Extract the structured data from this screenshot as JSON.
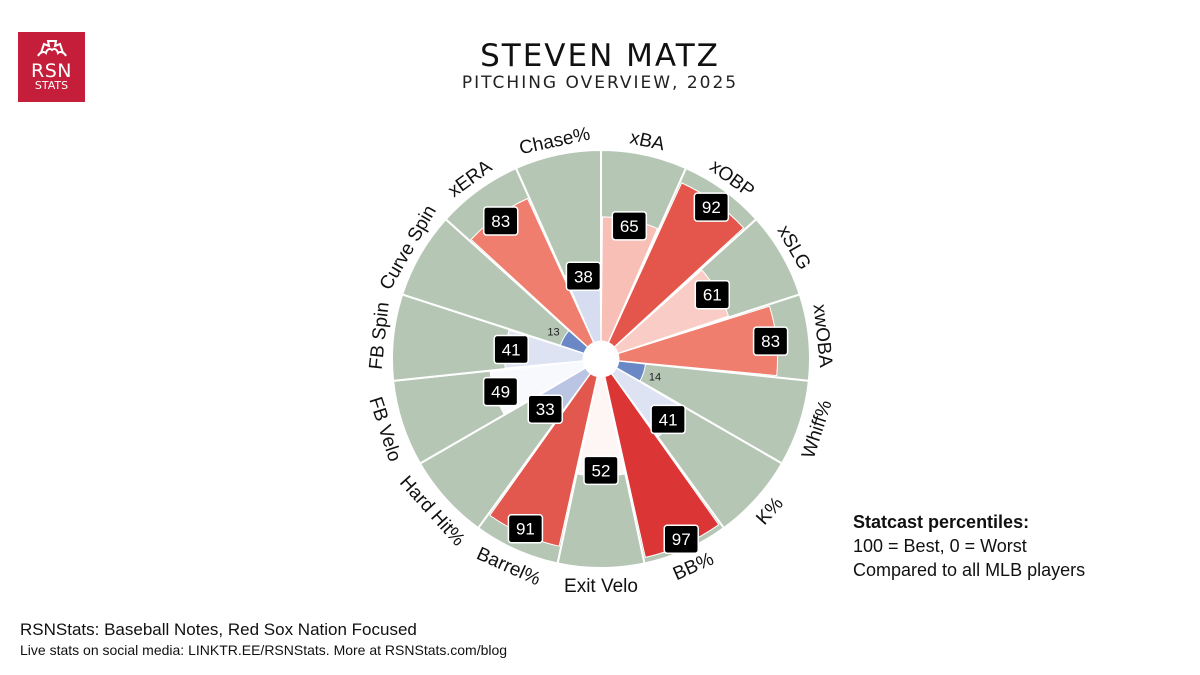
{
  "header": {
    "title": "STEVEN MATZ",
    "subtitle": "PITCHING OVERVIEW, 2025"
  },
  "logo": {
    "line1": "RSN",
    "line2": "STATS",
    "icon": "red-sox-logo-icon",
    "color": "#c41e3a"
  },
  "legend": {
    "title": "Statcast percentiles:",
    "line1": "100 = Best, 0 = Worst",
    "line2": "Compared to all MLB players"
  },
  "footer": {
    "line1": "RSNStats: Baseball Notes, Red Sox Nation Focused",
    "line2": "Live stats on social media: LINKTR.EE/RSNStats. More at RSNStats.com/blog"
  },
  "chart_data": {
    "type": "polar-bar",
    "rlim": [
      0,
      100
    ],
    "background_color": "#b5c7b4",
    "categories": [
      "xBA",
      "xOBP",
      "xSLG",
      "xwOBA",
      "Whiff%",
      "K%",
      "BB%",
      "Exit Velo",
      "Barrel%",
      "Hard Hit%",
      "FB Velo",
      "FB Spin",
      "Curve Spin",
      "xERA",
      "Chase%"
    ],
    "values": [
      65,
      92,
      61,
      83,
      14,
      41,
      97,
      52,
      91,
      33,
      49,
      41,
      13,
      83,
      38
    ],
    "colors": [
      "#f8bfb6",
      "#e4564b",
      "#f9cdc6",
      "#f07e6f",
      "#6a88c6",
      "#dde3f3",
      "#dc3536",
      "#fdf6f5",
      "#e2584e",
      "#bac4e3",
      "#f8f9fd",
      "#dde3f3",
      "#6a88c6",
      "#f07e6f",
      "#d6ddf0"
    ]
  }
}
